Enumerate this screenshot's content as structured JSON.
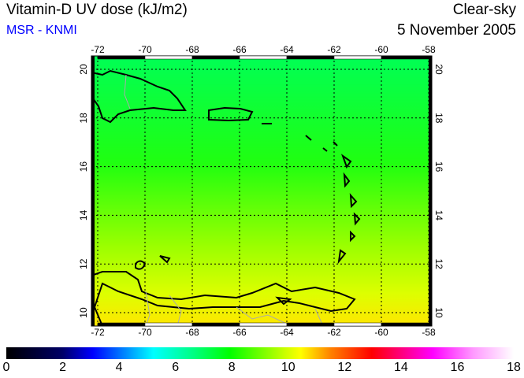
{
  "header": {
    "title": "Vitamin-D UV dose (kJ/m2)",
    "source": "MSR - KNMI",
    "mode": "Clear-sky",
    "date": "5 November 2005"
  },
  "map": {
    "lon_labels": [
      "-72",
      "-70",
      "-68",
      "-66",
      "-64",
      "-62",
      "-60",
      "-58"
    ],
    "lat_labels": [
      "20",
      "18",
      "16",
      "14",
      "12",
      "10"
    ],
    "lon_range": [
      -72,
      -58
    ],
    "lat_range": [
      9.5,
      20.5
    ]
  },
  "colorbar": {
    "labels": [
      "0",
      "2",
      "4",
      "6",
      "8",
      "10",
      "12",
      "14",
      "16",
      "18"
    ],
    "range": [
      0,
      18
    ],
    "colors": {
      "0": "#000000",
      "2": "#000066",
      "3": "#0000ff",
      "5.3": "#00ffff",
      "8": "#00ff00",
      "10.5": "#ffff00",
      "11.5": "#ff8000",
      "13": "#ff0000",
      "15": "#ff00ff",
      "18": "#ffffff"
    }
  }
}
